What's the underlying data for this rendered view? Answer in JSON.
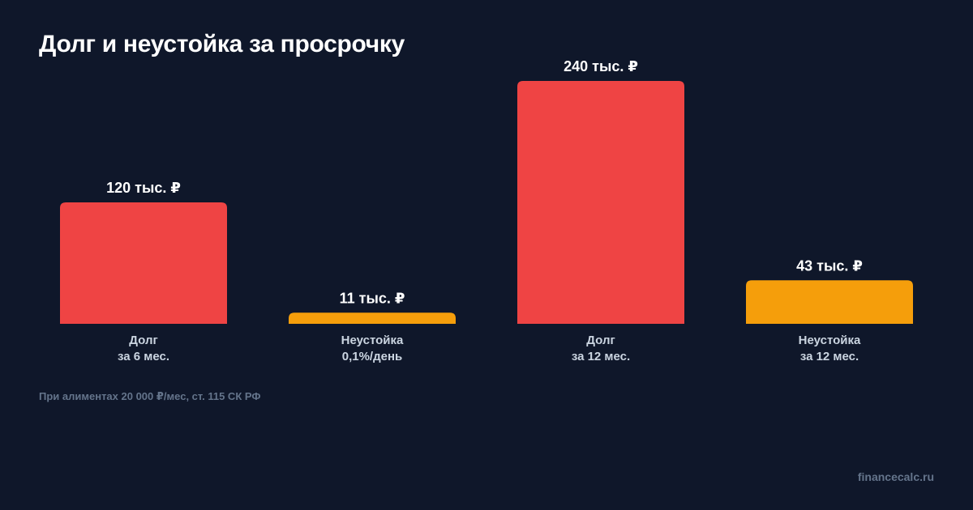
{
  "header": {
    "title": "Долг и неустойка за просрочку"
  },
  "footer": {
    "note": "При алиментах 20 000 ₽/мес, ст. 115 СК РФ",
    "brand": "financecalc.ru"
  },
  "colors": {
    "background": "#0f172a",
    "debt": "#ef4444",
    "penalty": "#f59e0b",
    "label": "#cbd5e1",
    "value": "#ffffff"
  },
  "chart_data": {
    "type": "bar",
    "title": "Долг и неустойка за просрочку",
    "xlabel": "",
    "ylabel": "",
    "ylim": [
      0,
      240
    ],
    "grid": false,
    "bars": [
      {
        "category_lines": [
          "Долг",
          "за 6 мес."
        ],
        "value": 120,
        "value_label": "120 тыс. ₽",
        "color": "#ef4444"
      },
      {
        "category_lines": [
          "Неустойка",
          "0,1%/день"
        ],
        "value": 11,
        "value_label": "11 тыс. ₽",
        "color": "#f59e0b"
      },
      {
        "category_lines": [
          "Долг",
          "за 12 мес."
        ],
        "value": 240,
        "value_label": "240 тыс. ₽",
        "color": "#ef4444"
      },
      {
        "category_lines": [
          "Неустойка",
          "за 12 мес."
        ],
        "value": 43,
        "value_label": "43 тыс. ₽",
        "color": "#f59e0b"
      }
    ]
  }
}
